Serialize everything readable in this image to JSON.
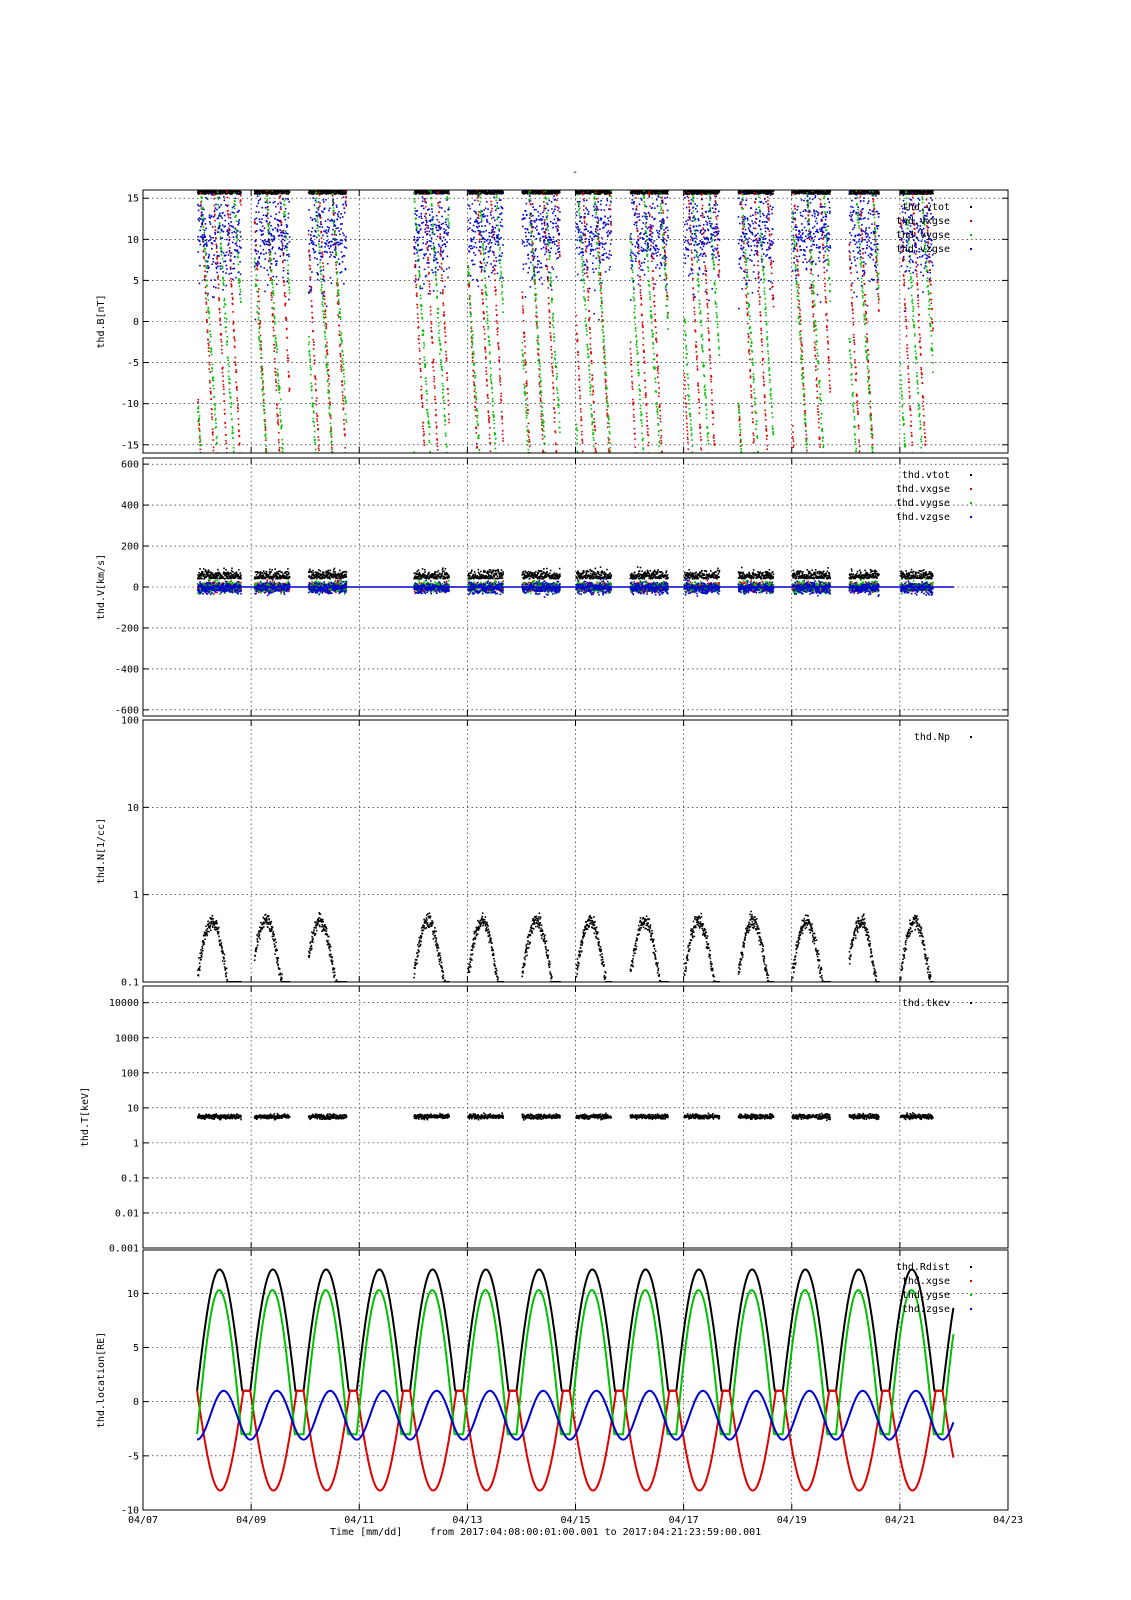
{
  "page_title": "-",
  "footer": {
    "xlabel": "Time [mm/dd]",
    "range_text": "from 2017:04:08:00:01:00.001  to  2017:04:21:23:59:00.001"
  },
  "chart_data": [
    {
      "type": "scatter",
      "ylabel": "thd.B[nT]",
      "xlim": [
        "04/07",
        "04/23"
      ],
      "ylim": [
        -16,
        16
      ],
      "yticks": [
        15,
        10,
        5,
        0,
        -5,
        -10,
        -15
      ],
      "legend_position": "top-right",
      "grid": true,
      "series": [
        {
          "name": "thd.vtot",
          "color": "#000000"
        },
        {
          "name": "thd.vxgse",
          "color": "#e00000"
        },
        {
          "name": "thd.vygse",
          "color": "#00c000"
        },
        {
          "name": "thd.vzgse",
          "color": "#0000d0"
        }
      ]
    },
    {
      "type": "scatter",
      "ylabel": "thd.V[km/s]",
      "xlim": [
        "04/07",
        "04/23"
      ],
      "ylim": [
        -630,
        630
      ],
      "yticks": [
        600,
        400,
        200,
        0,
        -200,
        -400,
        -600
      ],
      "legend_position": "top-right",
      "grid": true,
      "series": [
        {
          "name": "thd.vtot",
          "color": "#000000"
        },
        {
          "name": "thd.vxgse",
          "color": "#e00000"
        },
        {
          "name": "thd.vygse",
          "color": "#00c000"
        },
        {
          "name": "thd.vzgse",
          "color": "#0000d0"
        }
      ]
    },
    {
      "type": "scatter",
      "ylabel": "thd.N[1/cc]",
      "xlim": [
        "04/07",
        "04/23"
      ],
      "ylim": [
        0.1,
        100
      ],
      "yscale": "log",
      "yticks": [
        100,
        10,
        1,
        0.1
      ],
      "legend_position": "top-right",
      "grid": true,
      "series": [
        {
          "name": "thd.Np",
          "color": "#000000"
        }
      ]
    },
    {
      "type": "scatter",
      "ylabel": "thd.T[keV]",
      "xlim": [
        "04/07",
        "04/23"
      ],
      "ylim": [
        0.001,
        30000
      ],
      "yscale": "log",
      "yticks": [
        10000,
        1000,
        100,
        10,
        1,
        0.1,
        0.01,
        0.001
      ],
      "legend_position": "top-right",
      "grid": true,
      "series": [
        {
          "name": "thd.tkev",
          "color": "#000000"
        }
      ]
    },
    {
      "type": "line",
      "ylabel": "thd.location[RE]",
      "xlim": [
        "04/07",
        "04/23"
      ],
      "ylim": [
        -10,
        14
      ],
      "yticks": [
        10,
        5,
        0,
        -5,
        -10
      ],
      "legend_position": "top-right",
      "grid": true,
      "series": [
        {
          "name": "thd.Rdist",
          "color": "#000000",
          "max": 12.2,
          "min": 1
        },
        {
          "name": "thd.xgse",
          "color": "#e00000",
          "max": 1,
          "min": -8.2
        },
        {
          "name": "thd.ygse",
          "color": "#00c000",
          "max": 10.3,
          "min": -3
        },
        {
          "name": "thd.zgse",
          "color": "#0000d0",
          "max": 1,
          "min": -3.5
        }
      ]
    }
  ],
  "x_axis": {
    "ticks": [
      "04/07",
      "04/09",
      "04/11",
      "04/13",
      "04/15",
      "04/17",
      "04/19",
      "04/21",
      "04/23"
    ]
  }
}
